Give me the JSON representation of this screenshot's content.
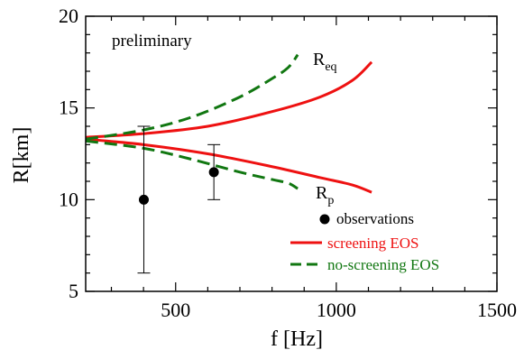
{
  "chart_data": {
    "type": "line",
    "xlabel": "f [Hz]",
    "ylabel": "R[km]",
    "xlim": [
      220,
      1500
    ],
    "ylim": [
      5,
      20
    ],
    "x_ticks": [
      500,
      1000,
      1500
    ],
    "y_ticks": [
      5,
      10,
      15,
      20
    ],
    "x_tick_labels": [
      "500",
      "1000",
      "1500"
    ],
    "y_tick_labels": [
      "5",
      "10",
      "15",
      "20"
    ],
    "annotation": "preliminary",
    "curve_labels": [
      {
        "main": "R",
        "sub": "eq"
      },
      {
        "main": "R",
        "sub": "p"
      }
    ],
    "series": [
      {
        "name": "screening EOS",
        "color": "#ee1111",
        "style": "solid",
        "curves": [
          {
            "x": [
              220,
              400,
              600,
              800,
              950,
              1050,
              1110
            ],
            "y": [
              13.4,
              13.6,
              14.0,
              14.8,
              15.6,
              16.5,
              17.5
            ]
          },
          {
            "x": [
              220,
              400,
              600,
              800,
              950,
              1050,
              1110
            ],
            "y": [
              13.3,
              13.0,
              12.5,
              11.8,
              11.2,
              10.8,
              10.4
            ]
          }
        ]
      },
      {
        "name": "no-screening EOS",
        "color": "#117711",
        "style": "dashed",
        "curves": [
          {
            "x": [
              220,
              400,
              550,
              700,
              800,
              850,
              880
            ],
            "y": [
              13.3,
              13.8,
              14.5,
              15.6,
              16.6,
              17.2,
              17.9
            ]
          },
          {
            "x": [
              220,
              400,
              550,
              700,
              800,
              850,
              880
            ],
            "y": [
              13.2,
              12.8,
              12.2,
              11.5,
              11.1,
              10.9,
              10.6
            ]
          }
        ]
      },
      {
        "name": "observations",
        "color": "#000000",
        "style": "points",
        "points": [
          {
            "x": 401,
            "y": 10.0,
            "ymin": 6.0,
            "ymax": 14.0
          },
          {
            "x": 619,
            "y": 11.5,
            "ymin": 10.0,
            "ymax": 13.0
          }
        ]
      }
    ],
    "legend_position": "bottom-right"
  }
}
